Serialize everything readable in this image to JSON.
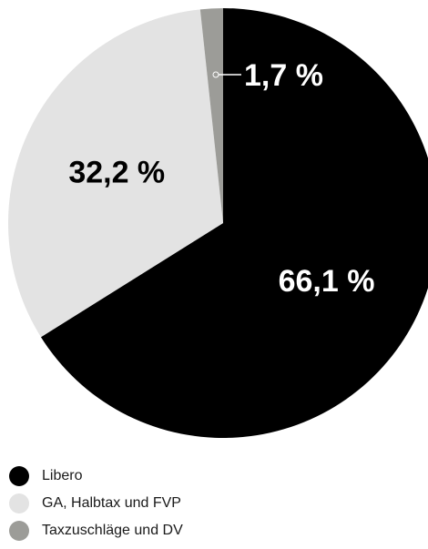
{
  "chart_data": {
    "type": "pie",
    "title": "",
    "start_angle_deg": 0,
    "direction": "clockwise",
    "slices": [
      {
        "name": "Libero",
        "value": 66.1,
        "label": "66,1 %",
        "color": "#000000",
        "label_color": "#ffffff"
      },
      {
        "name": "GA, Halbtax und FVP",
        "value": 32.2,
        "label": "32,2 %",
        "color": "#e3e3e3",
        "label_color": "#000000"
      },
      {
        "name": "Taxzuschläge und DV",
        "value": 1.7,
        "label": "1,7 %",
        "color": "#9c9c98",
        "label_color": "#ffffff"
      }
    ],
    "legend": {
      "position": "bottom-left"
    }
  }
}
